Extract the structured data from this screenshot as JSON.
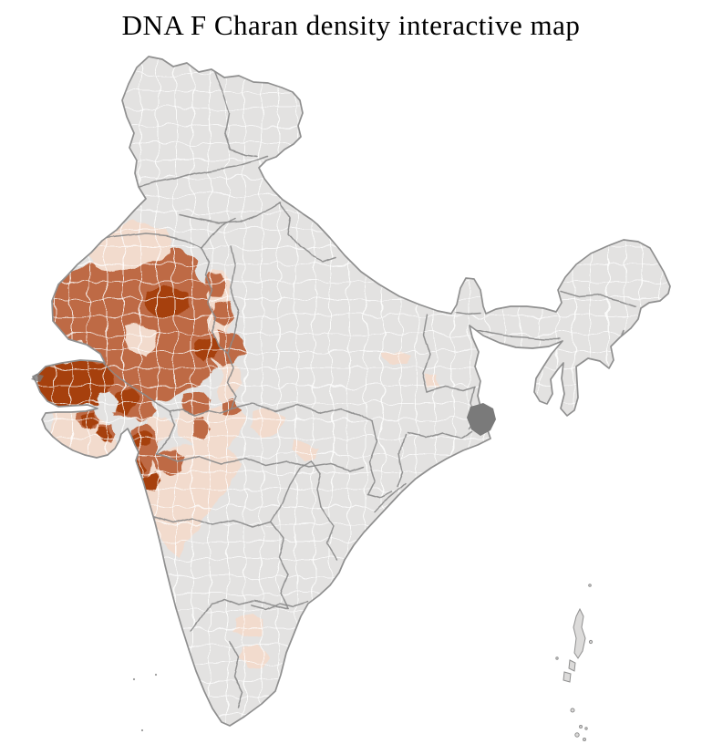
{
  "title": "DNA F Charan density interactive map",
  "map": {
    "country": "India",
    "type": "choropleth",
    "unit": "district",
    "palette": {
      "background": "#ffffff",
      "no_data_fill": "#e3e2e1",
      "district_border": "#ffffff",
      "state_border": "#8b8b8b",
      "country_outline": "#8f8f8f",
      "density_low": "#f2dbcd",
      "density_medium": "#be6a45",
      "density_high": "#a6410f",
      "unknown_district": "#7a7a7a",
      "island_fill": "#dcdbda"
    },
    "levels": [
      {
        "name": "no-data",
        "color": "#e3e2e1"
      },
      {
        "name": "low",
        "color": "#f2dbcd"
      },
      {
        "name": "medium",
        "color": "#be6a45"
      },
      {
        "name": "high",
        "color": "#a6410f"
      }
    ]
  }
}
